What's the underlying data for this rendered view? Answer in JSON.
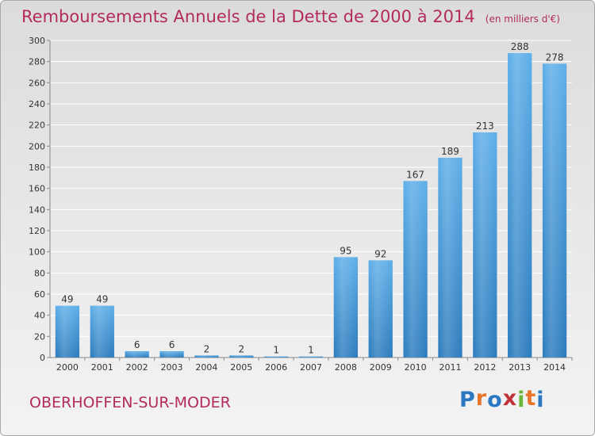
{
  "header": {
    "title": "Remboursements Annuels de la Dette de 2000 à 2014",
    "unit_note": "(en milliers d'€)"
  },
  "footer": {
    "commune": "OBERHOFFEN-SUR-MODER",
    "logo_text": "Proxiti",
    "logo_colors": [
      "#2b78c2",
      "#e8742a",
      "#2b78c2",
      "#c2303a",
      "#6bb53a",
      "#e8742a",
      "#2b78c2"
    ]
  },
  "colors": {
    "accent": "#b32b5e",
    "bar_top": "#5daee8",
    "bar_bottom": "#2b7bbd",
    "grid": "#ffffff"
  },
  "chart_data": {
    "type": "bar",
    "title": "Remboursements Annuels de la Dette de 2000 à 2014",
    "subtitle": "(en milliers d'€)",
    "xlabel": "",
    "ylabel": "",
    "categories": [
      "2000",
      "2001",
      "2002",
      "2003",
      "2004",
      "2005",
      "2006",
      "2007",
      "2008",
      "2009",
      "2010",
      "2011",
      "2012",
      "2013",
      "2014"
    ],
    "values": [
      49,
      49,
      6,
      6,
      2,
      2,
      1,
      1,
      95,
      92,
      167,
      189,
      213,
      288,
      278
    ],
    "ylim": [
      0,
      300
    ],
    "yticks": [
      0,
      20,
      40,
      60,
      80,
      100,
      120,
      140,
      160,
      180,
      200,
      220,
      240,
      260,
      280,
      300
    ],
    "grid": true,
    "data_labels": true
  }
}
